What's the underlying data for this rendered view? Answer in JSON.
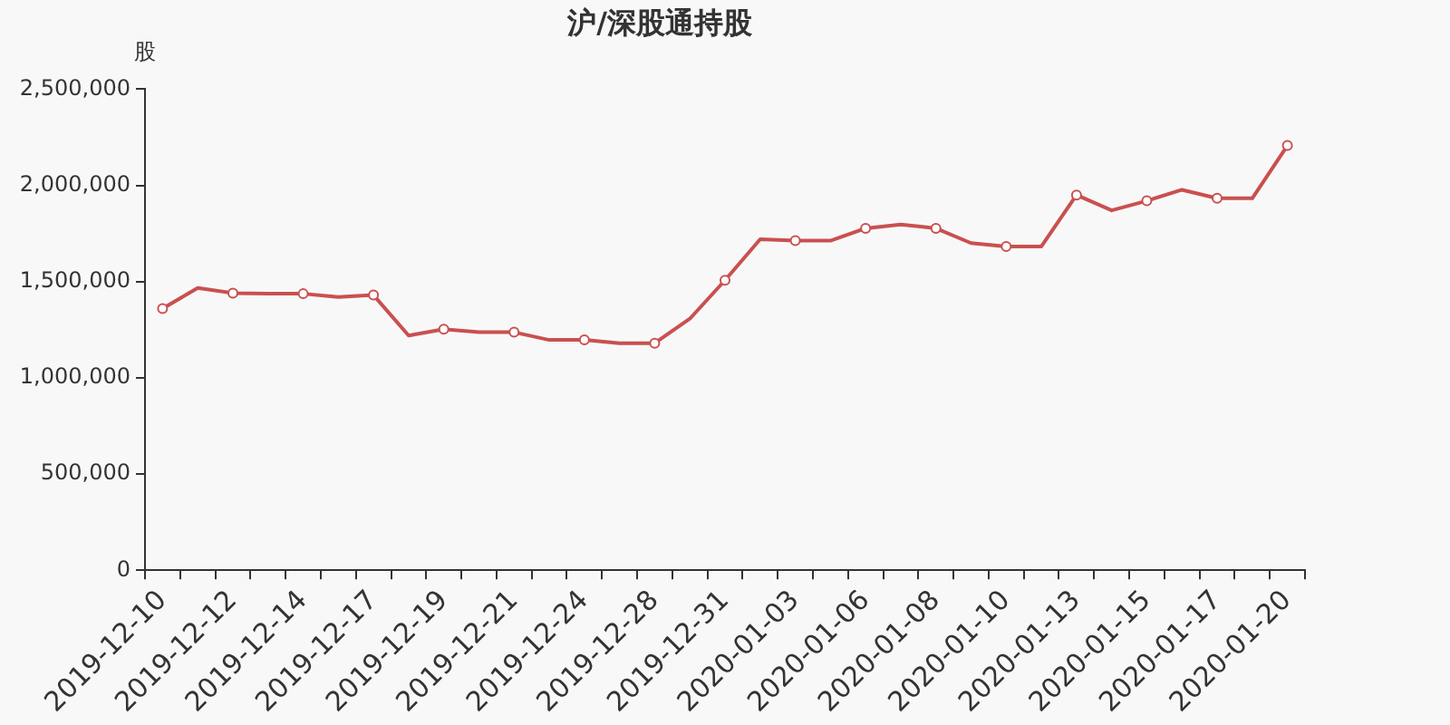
{
  "chart_data": {
    "type": "line",
    "title": "沪/深股通持股",
    "ylabel": "股",
    "categories": [
      "2019-12-10",
      null,
      "2019-12-12",
      null,
      "2019-12-14",
      null,
      "2019-12-17",
      null,
      "2019-12-19",
      null,
      "2019-12-21",
      null,
      "2019-12-24",
      null,
      "2019-12-28",
      null,
      "2019-12-31",
      null,
      "2020-01-03",
      null,
      "2020-01-06",
      null,
      "2020-01-08",
      null,
      "2020-01-10",
      null,
      "2020-01-13",
      null,
      "2020-01-15",
      null,
      "2020-01-17",
      null,
      "2020-01-20"
    ],
    "series": [
      {
        "color": "#c9504f",
        "values": [
          1360000,
          1467000,
          1440000,
          1437000,
          1437000,
          1420000,
          1430000,
          1220000,
          1253000,
          1237000,
          1237000,
          1197000,
          1197000,
          1180000,
          1180000,
          1307000,
          1507000,
          1720000,
          1713000,
          1713000,
          1777000,
          1797000,
          1777000,
          1700000,
          1683000,
          1683000,
          1950000,
          1870000,
          1920000,
          1977000,
          1933000,
          1933000,
          2207000
        ]
      }
    ],
    "ylim": [
      0,
      2500000
    ],
    "yticks": [
      {
        "value": 0,
        "label": "0"
      },
      {
        "value": 500000,
        "label": "500,000"
      },
      {
        "value": 1000000,
        "label": "1,000,000"
      },
      {
        "value": 1500000,
        "label": "1,500,000"
      },
      {
        "value": 2000000,
        "label": "2,000,000"
      },
      {
        "value": 2500000,
        "label": "2,500,000"
      }
    ],
    "grid": false,
    "legend": false,
    "marker": "circle",
    "line_style": "solid"
  }
}
